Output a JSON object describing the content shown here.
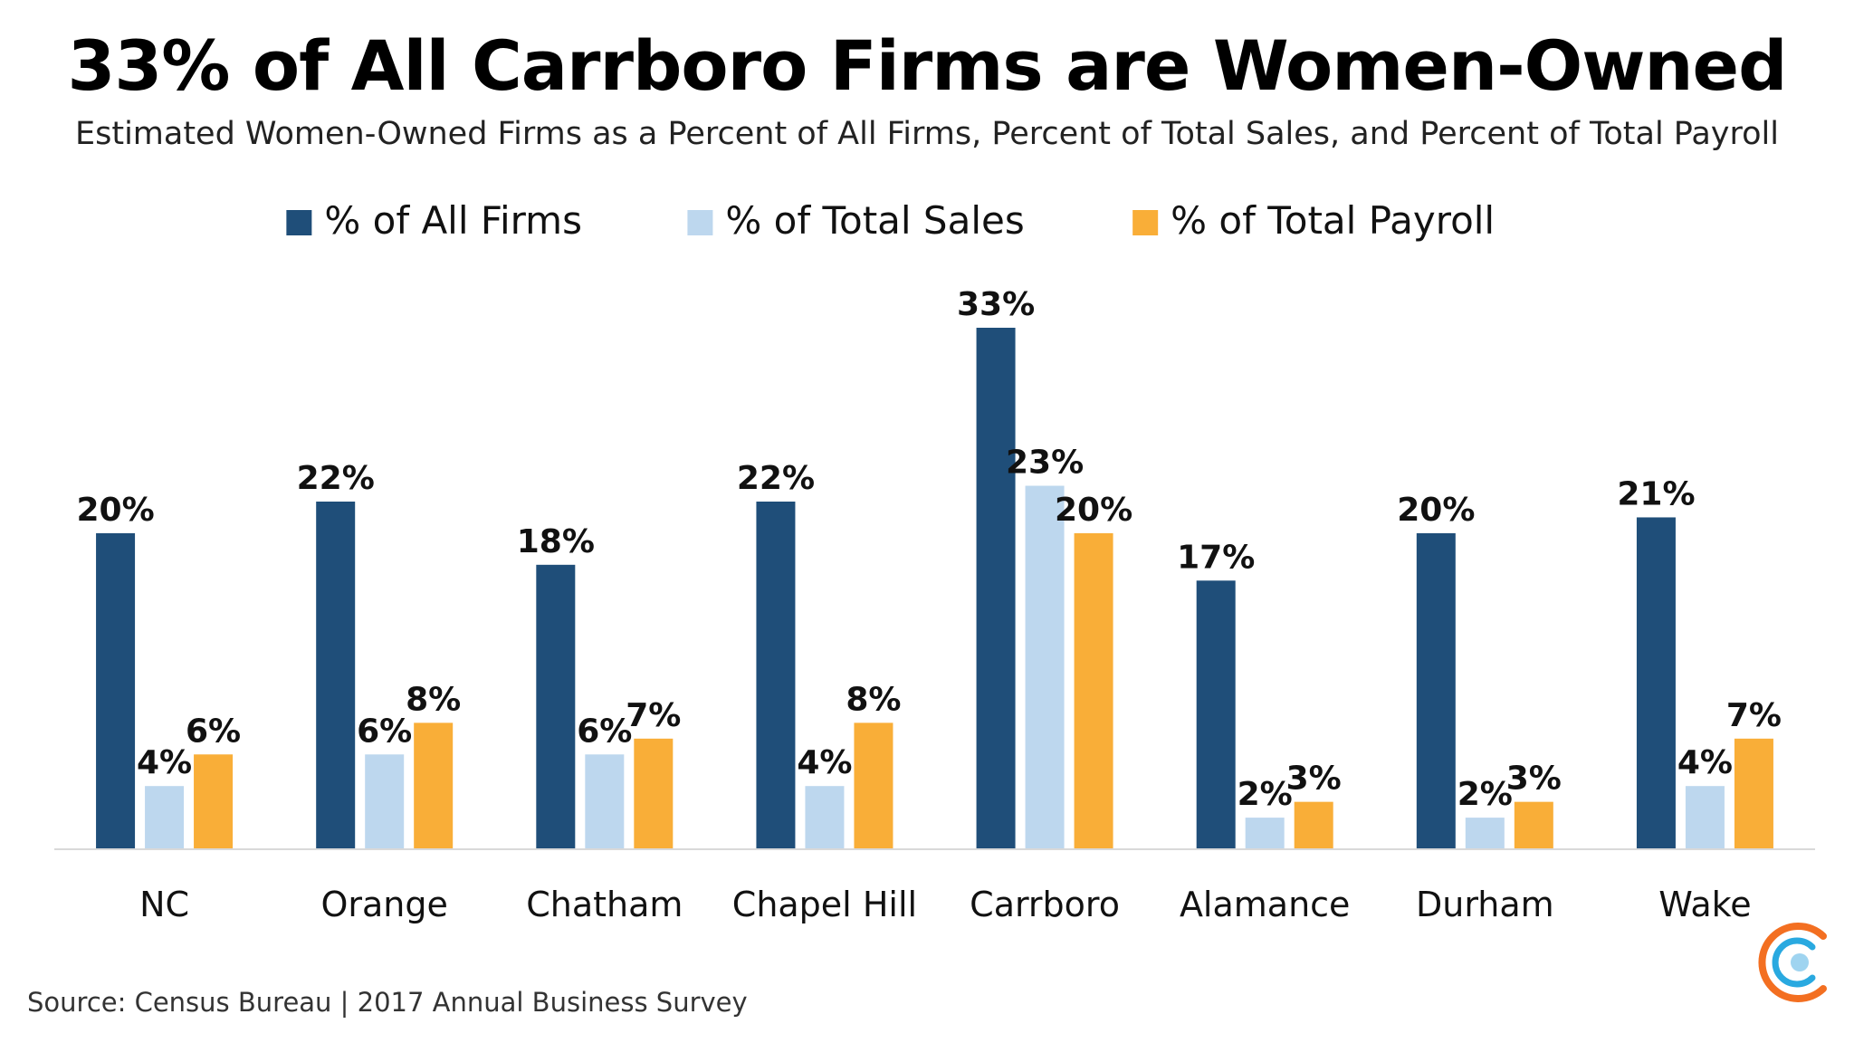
{
  "title": "33% of All Carrboro Firms are Women-Owned",
  "subtitle": "Estimated Women-Owned Firms as a Percent of All Firms, Percent of Total Sales, and Percent of Total Payroll",
  "source": "Source: Census Bureau | 2017 Annual Business Survey",
  "colors": {
    "firms": "#1f4e79",
    "sales": "#bdd7ee",
    "payroll": "#f9ae38",
    "axis": "#d9d9d9"
  },
  "logo": {
    "icon": "census-logo-icon",
    "colors": [
      "#f36f21",
      "#29a9e0",
      "#9fd4f0"
    ]
  },
  "chart_data": {
    "type": "bar",
    "categories": [
      "NC",
      "Orange",
      "Chatham",
      "Chapel Hill",
      "Carrboro",
      "Alamance",
      "Durham",
      "Wake"
    ],
    "series": [
      {
        "name": "% of All Firms",
        "values": [
          20,
          22,
          18,
          22,
          33,
          17,
          20,
          21
        ],
        "labels": [
          "20%",
          "22%",
          "18%",
          "22%",
          "33%",
          "17%",
          "20%",
          "21%"
        ]
      },
      {
        "name": "% of Total Sales",
        "values": [
          4,
          6,
          6,
          4,
          23,
          2,
          2,
          4
        ],
        "labels": [
          "4%",
          "6%",
          "6%",
          "4%",
          "23%",
          "2%",
          "2%",
          "4%"
        ]
      },
      {
        "name": "% of Total Payroll",
        "values": [
          6,
          8,
          7,
          8,
          20,
          3,
          3,
          7
        ],
        "labels": [
          "6%",
          "8%",
          "7%",
          "8%",
          "20%",
          "3%",
          "3%",
          "7%"
        ]
      }
    ],
    "ylim": [
      0,
      33
    ],
    "legend_position": "top",
    "grid": false
  }
}
